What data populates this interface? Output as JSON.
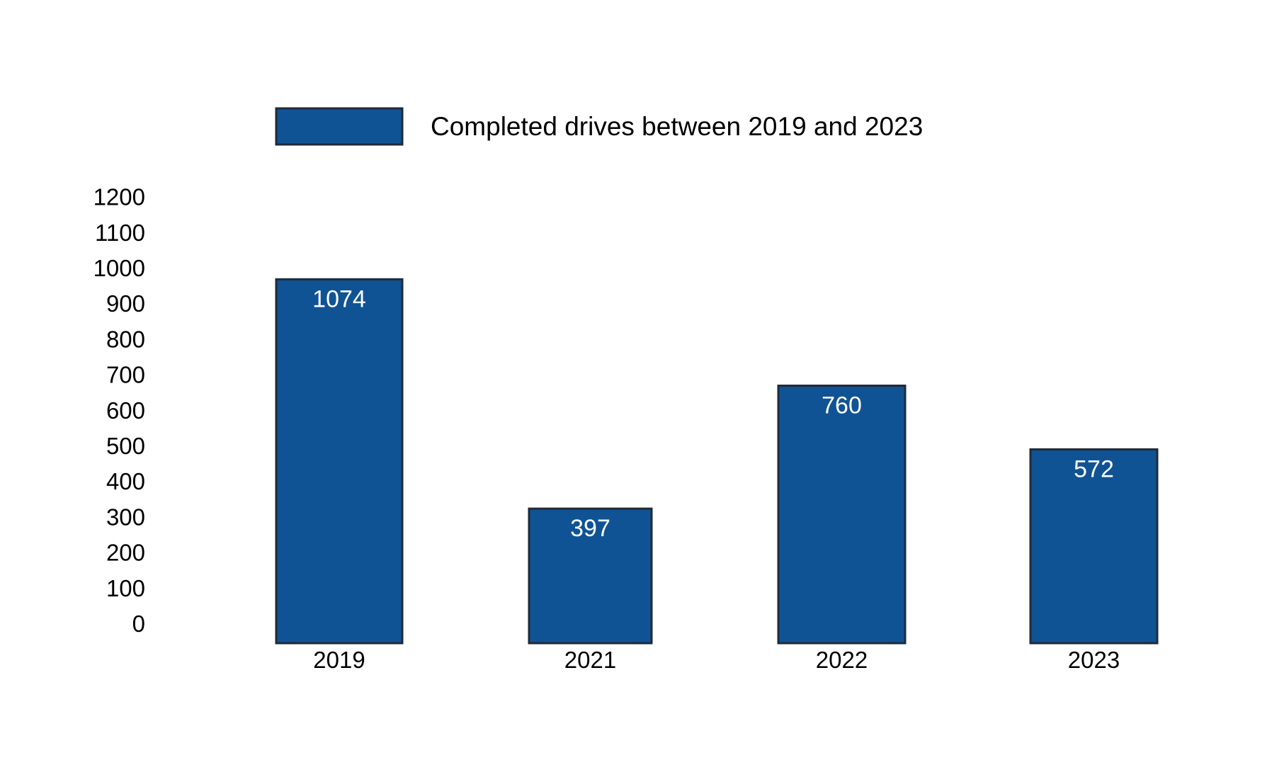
{
  "chart_data": {
    "type": "bar",
    "categories": [
      "2019",
      "2021",
      "2022",
      "2023"
    ],
    "series": [
      {
        "name": "Completed drives between 2019 and 2023",
        "values": [
          1074,
          397,
          760,
          572
        ],
        "color": "#0f5394",
        "border_color": "#1f2a3a"
      }
    ],
    "data_labels": [
      "1074",
      "397",
      "760",
      "572"
    ],
    "y_ticks": [
      "0",
      "100",
      "200",
      "300",
      "400",
      "500",
      "600",
      "700",
      "800",
      "900",
      "1000",
      "1100",
      "1200"
    ],
    "ylim": [
      0,
      1200
    ],
    "title": "",
    "xlabel": "",
    "ylabel": "",
    "grid": false,
    "legend_position": "top"
  }
}
